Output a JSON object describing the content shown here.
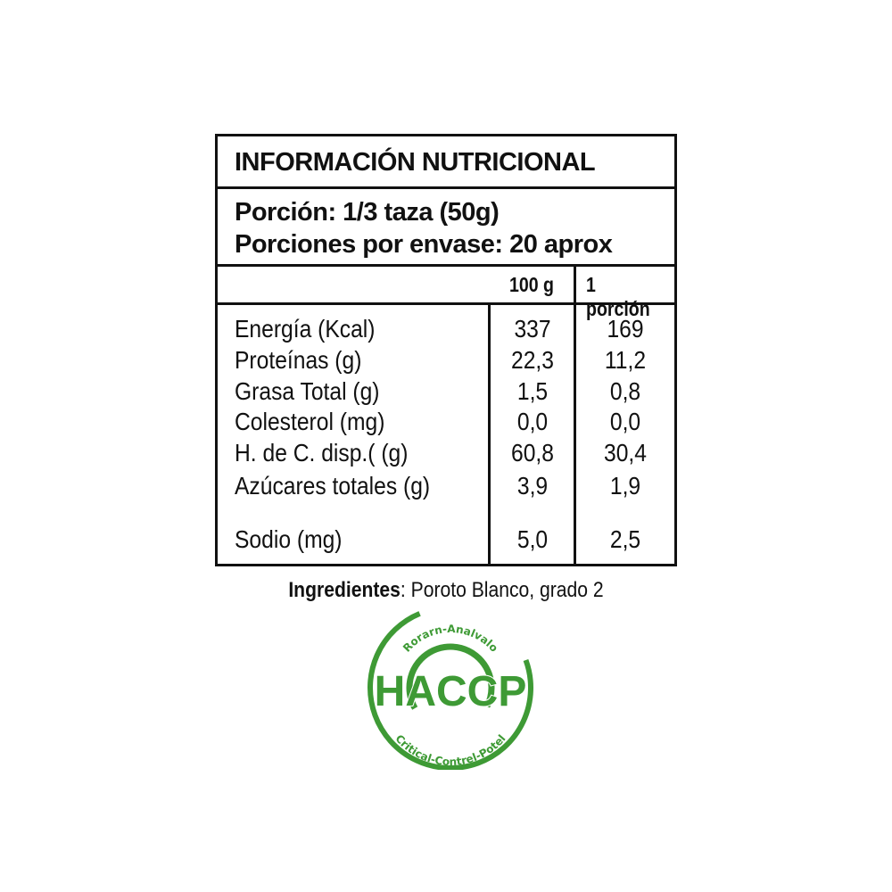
{
  "title": "INFORMACIÓN NUTRICIONAL",
  "portion": {
    "line1": "Porción: 1/3 taza (50g)",
    "line2": "Porciones por envase: 20 aprox"
  },
  "columns": {
    "col1": "100 g",
    "col2": "1 porción"
  },
  "rows": [
    {
      "label": "Energía (Kcal)",
      "v100": "337",
      "vport": "169"
    },
    {
      "label": "Proteínas (g)",
      "v100": "22,3",
      "vport": "11,2"
    },
    {
      "label": "Grasa Total (g)",
      "v100": "1,5",
      "vport": "0,8"
    },
    {
      "label": "Colesterol (mg)",
      "v100": "0,0",
      "vport": "0,0"
    },
    {
      "label": "H. de C. disp.( (g)",
      "v100": "60,8",
      "vport": "30,4"
    },
    {
      "label": "Azúcares totales (g)",
      "v100": "3,9",
      "vport": "1,9"
    },
    {
      "label": "Sodio (mg)",
      "v100": "5,0",
      "vport": "2,5"
    }
  ],
  "ingredients": {
    "label": "Ingredientes",
    "text": ": Poroto Blanco, grado 2"
  },
  "logo": {
    "main": "HACCP",
    "top": "Rorarn-Analvalo",
    "bottom": "Critical-Contrel-Potel",
    "color": "#3e9a35"
  }
}
